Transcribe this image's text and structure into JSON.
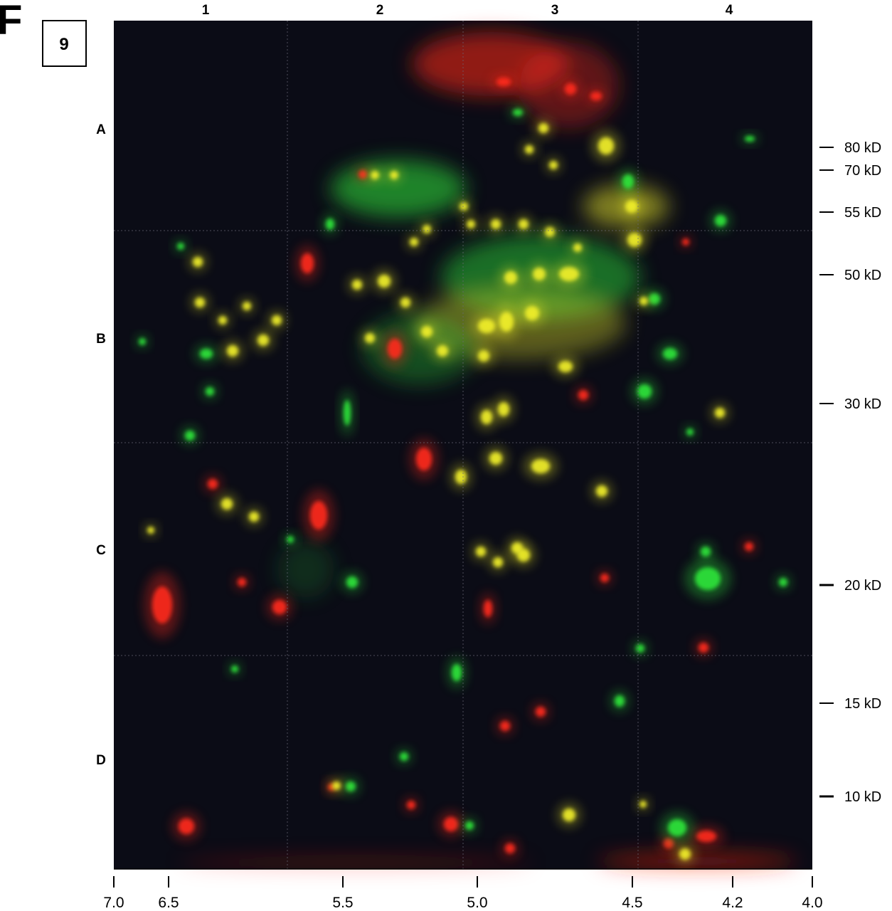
{
  "figure": {
    "panel_letter": "F",
    "gel_number": "9",
    "column_labels": [
      "1",
      "2",
      "3",
      "4"
    ],
    "row_labels": [
      "A",
      "B",
      "C",
      "D"
    ],
    "mw_markers": [
      "80 kD",
      "70 kD",
      "55 kD",
      "50 kD",
      "30 kD",
      "20 kD",
      "15 kD",
      "10 kD"
    ],
    "ph_ticks": [
      "7.0",
      "6.5",
      "5.5",
      "5.0",
      "4.5",
      "4.2",
      "4.0"
    ]
  },
  "colors": {
    "gel_background": "#0b0c16",
    "grid_line": "#6a6a78",
    "spot_red": "#ff2a1a",
    "spot_green": "#2fe63a",
    "spot_yellow": "#f2f02a",
    "label_text": "#000000"
  }
}
